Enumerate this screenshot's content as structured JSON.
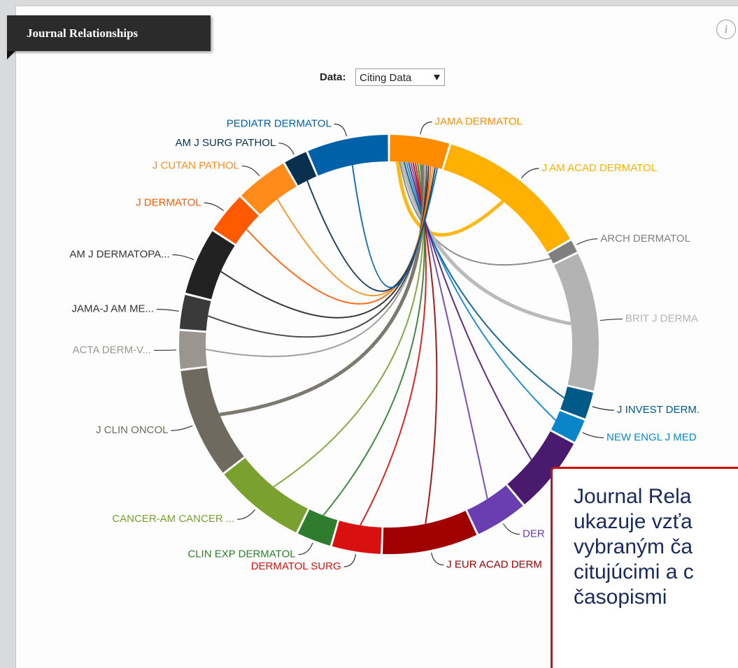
{
  "header": {
    "title": "Journal Relationships",
    "info": "i"
  },
  "selector": {
    "label": "Data:",
    "value": "Citing Data"
  },
  "nodes": [
    {
      "label": "JAMA DERMATOL",
      "color": "#ff8c00"
    },
    {
      "label": "J AM ACAD DERMATOL",
      "color": "#ffb000"
    },
    {
      "label": "ARCH DERMATOL",
      "color": "#7f7f7f"
    },
    {
      "label": "BRIT J DERMA",
      "color": "#b3b3b3"
    },
    {
      "label": "J INVEST DERM.",
      "color": "#005a87"
    },
    {
      "label": "NEW ENGL J MED",
      "color": "#0a86c8"
    },
    {
      "label": null,
      "color": "#4a1a6e"
    },
    {
      "label": "DER",
      "color": "#6a3db0"
    },
    {
      "label": "J EUR ACAD DERM",
      "color": "#a00000"
    },
    {
      "label": "DERMATOL SURG",
      "color": "#d81010"
    },
    {
      "label": "CLIN EXP DERMATOL",
      "color": "#2e7d2e"
    },
    {
      "label": "CANCER-AM CANCER ...",
      "color": "#7aa030"
    },
    {
      "label": "J CLIN ONCOL",
      "color": "#6e6a60"
    },
    {
      "label": "ACTA DERM-V...",
      "color": "#9a958e"
    },
    {
      "label": "JAMA-J AM ME...",
      "color": "#3a3a3a"
    },
    {
      "label": "AM J DERMATOPA...",
      "color": "#222222"
    },
    {
      "label": "J DERMATOL",
      "color": "#ff5a00"
    },
    {
      "label": "J CUTAN PATHOL",
      "color": "#ff8c1a"
    },
    {
      "label": "AM J SURG PATHOL",
      "color": "#0a3050"
    },
    {
      "label": "PEDIATR DERMATOL",
      "color": "#0060a8"
    }
  ],
  "annotation": {
    "lines": [
      "Journal Rela",
      "ukazuje vzťa",
      "vybraným ča",
      "citujúcimi a c",
      "časopismi"
    ]
  }
}
